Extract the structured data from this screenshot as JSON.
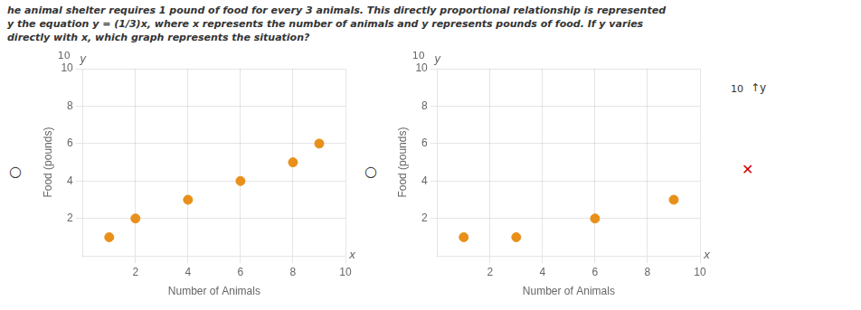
{
  "title": [
    "he animal shelter requires 1 pound of food for every 3 animals. This directly proportional relationship is represented",
    "y the equation y = (1/3)x, where x represents the number of animals and y represents pounds of food. If y varies",
    "directly with x, which graph represents the situation?"
  ],
  "annotations": [
    {
      "text": "○"
    },
    {
      "text": "○"
    },
    {
      "text": "10"
    },
    {
      "text": "↑y"
    },
    {
      "text": "✕",
      "color": "#cc0000"
    }
  ],
  "chart_data": [
    {
      "type": "scatter",
      "xlabel": "Number of Animals",
      "ylabel": "Food (pounds)",
      "x": [
        1,
        2,
        4,
        6,
        8,
        9
      ],
      "values": [
        1,
        2,
        3,
        4,
        5,
        6
      ],
      "color": "#e8901a",
      "xlim": [
        0,
        10
      ],
      "ylim": [
        0,
        10
      ],
      "xticks": [
        2,
        4,
        6,
        8,
        10
      ],
      "yticks": [
        2,
        4,
        6,
        8,
        10
      ],
      "grid": true,
      "annotations": [
        "x",
        "y",
        "10"
      ]
    },
    {
      "type": "scatter",
      "xlabel": "Number of Animals",
      "ylabel": "Food (pounds)",
      "x": [
        1,
        3,
        6,
        9
      ],
      "values": [
        1,
        1,
        2,
        3
      ],
      "color": "#e8901a",
      "xlim": [
        0,
        10
      ],
      "ylim": [
        0,
        10
      ],
      "xticks": [
        2,
        4,
        6,
        8,
        10
      ],
      "yticks": [
        2,
        4,
        6,
        8,
        10
      ],
      "grid": true,
      "annotations": [
        "x",
        "y",
        "10"
      ]
    }
  ]
}
